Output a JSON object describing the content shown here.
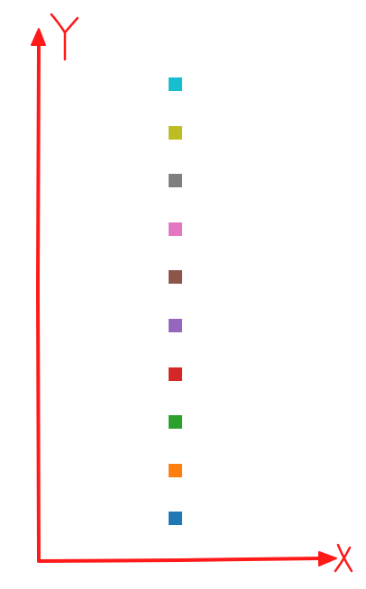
{
  "axes": {
    "x_label": "X",
    "y_label": "Y",
    "color": "#ff1a1a"
  },
  "swatches": [
    {
      "name": "cyan",
      "color": "#17becf"
    },
    {
      "name": "olive",
      "color": "#bcbd22"
    },
    {
      "name": "gray",
      "color": "#7f7f7f"
    },
    {
      "name": "pink",
      "color": "#e377c2"
    },
    {
      "name": "brown",
      "color": "#8c564b"
    },
    {
      "name": "purple",
      "color": "#9467bd"
    },
    {
      "name": "red",
      "color": "#d62728"
    },
    {
      "name": "green",
      "color": "#2ca02c"
    },
    {
      "name": "orange",
      "color": "#ff7f0e"
    },
    {
      "name": "blue",
      "color": "#1f77b4"
    }
  ]
}
